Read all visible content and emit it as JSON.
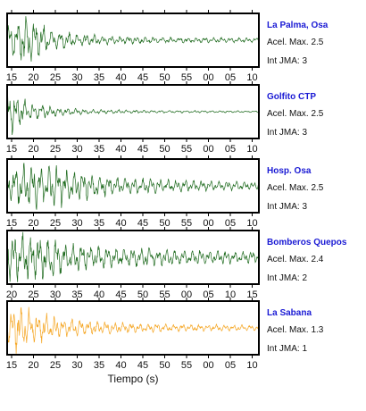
{
  "chart_data": {
    "type": "line",
    "xlabel": "Tiempo (s)",
    "x_tick_labels": [
      "15",
      "20",
      "25",
      "30",
      "35",
      "40",
      "45",
      "50",
      "55",
      "00",
      "05",
      "10"
    ],
    "colors": {
      "dark_trace": "#1f6b1f",
      "highlight_trace": "#f5a623",
      "station_name": "#1a1ad4"
    },
    "series": [
      {
        "name": "La Palma, Osa",
        "accel_label": "Acel. Max. 2.5",
        "jma_label": "Int JMA: 3",
        "color": "#1f6b1f",
        "bottom_ticks": [
          "15",
          "20",
          "25",
          "30",
          "35",
          "40",
          "45",
          "50",
          "55",
          "00",
          "05",
          "10"
        ],
        "x": [
          0,
          2,
          4,
          6,
          8,
          10,
          12,
          15,
          20,
          25,
          30,
          40,
          50,
          60
        ],
        "amplitude": [
          0.5,
          0.75,
          0.95,
          0.8,
          0.6,
          0.45,
          0.35,
          0.28,
          0.2,
          0.16,
          0.13,
          0.1,
          0.09,
          0.08
        ]
      },
      {
        "name": "Golfito CTP",
        "accel_label": "Acel. Max. 2.5",
        "jma_label": "Int JMA: 3",
        "color": "#1f6b1f",
        "bottom_ticks": [
          "15",
          "20",
          "25",
          "30",
          "35",
          "40",
          "45",
          "50",
          "55",
          "00",
          "05",
          "10"
        ],
        "x": [
          0,
          1,
          3,
          5,
          8,
          12,
          18,
          25,
          35,
          45,
          60
        ],
        "amplitude": [
          1.0,
          0.9,
          0.55,
          0.35,
          0.25,
          0.15,
          0.1,
          0.07,
          0.05,
          0.04,
          0.03
        ]
      },
      {
        "name": "Hosp. Osa",
        "accel_label": "Acel. Max. 2.5",
        "jma_label": "Int JMA: 3",
        "color": "#1f6b1f",
        "bottom_ticks": [
          "15",
          "20",
          "25",
          "30",
          "35",
          "40",
          "45",
          "50",
          "55",
          "00",
          "05",
          "10"
        ],
        "x": [
          0,
          3,
          6,
          9,
          12,
          15,
          20,
          25,
          30,
          40,
          50,
          60
        ],
        "amplitude": [
          0.5,
          0.75,
          0.85,
          0.7,
          0.8,
          0.6,
          0.45,
          0.35,
          0.3,
          0.22,
          0.17,
          0.14
        ]
      },
      {
        "name": "Bomberos Quepos",
        "accel_label": "Acel. Max. 2.4",
        "jma_label": "Int JMA: 2",
        "color": "#1f6b1f",
        "bottom_ticks": [
          "20",
          "25",
          "30",
          "35",
          "40",
          "45",
          "50",
          "55",
          "00",
          "05",
          "10",
          "15"
        ],
        "x": [
          0,
          3,
          6,
          10,
          14,
          18,
          22,
          30,
          40,
          50,
          60
        ],
        "amplitude": [
          0.85,
          0.95,
          0.85,
          0.75,
          0.55,
          0.45,
          0.4,
          0.35,
          0.3,
          0.25,
          0.22
        ]
      },
      {
        "name": "La Sabana",
        "accel_label": "Acel. Max. 1.3",
        "jma_label": "Int JMA: 1",
        "color": "#f5a623",
        "bottom_ticks": [
          "15",
          "20",
          "25",
          "30",
          "35",
          "40",
          "45",
          "50",
          "55",
          "00",
          "05",
          "10"
        ],
        "x": [
          0,
          2,
          4,
          7,
          10,
          14,
          20,
          28,
          35,
          45,
          60
        ],
        "amplitude": [
          0.6,
          0.85,
          0.75,
          0.6,
          0.45,
          0.35,
          0.26,
          0.2,
          0.15,
          0.12,
          0.1
        ]
      }
    ]
  }
}
